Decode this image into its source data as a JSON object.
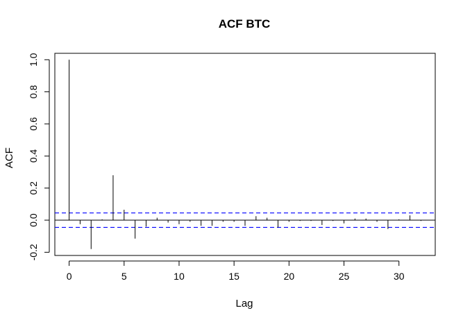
{
  "chart_data": {
    "type": "bar",
    "title": "ACF BTC",
    "xlabel": "Lag",
    "ylabel": "ACF",
    "xlim": [
      -1.3,
      33.3
    ],
    "ylim": [
      -0.22,
      1.04
    ],
    "x_ticks": [
      0,
      5,
      10,
      15,
      20,
      25,
      30
    ],
    "x_tick_labels": [
      "0",
      "5",
      "10",
      "15",
      "20",
      "25",
      "30"
    ],
    "y_ticks": [
      -0.2,
      0.0,
      0.2,
      0.4,
      0.6,
      0.8,
      1.0
    ],
    "y_tick_labels": [
      "-0.2",
      "0.0",
      "0.2",
      "0.4",
      "0.6",
      "0.8",
      "1.0"
    ],
    "lags": [
      0,
      1,
      2,
      3,
      4,
      5,
      6,
      7,
      8,
      9,
      10,
      11,
      12,
      13,
      14,
      15,
      16,
      17,
      18,
      19,
      20,
      21,
      22,
      23,
      24,
      25,
      26,
      27,
      28,
      29,
      30,
      31,
      32
    ],
    "values": [
      1.0,
      -0.025,
      -0.18,
      0.005,
      0.28,
      0.065,
      -0.115,
      -0.04,
      0.015,
      -0.015,
      -0.025,
      -0.01,
      -0.035,
      -0.035,
      -0.01,
      -0.01,
      -0.035,
      0.025,
      0.015,
      -0.045,
      -0.01,
      -0.005,
      -0.005,
      -0.03,
      -0.005,
      -0.02,
      0.01,
      0.01,
      -0.01,
      -0.055,
      0.005,
      0.03,
      -0.005
    ],
    "confidence_band": [
      0.045,
      -0.045
    ],
    "zero_line": 0,
    "grid": false,
    "colors": {
      "bars": "#000000",
      "confidence": "#0000ff",
      "zero": "#000000"
    }
  }
}
